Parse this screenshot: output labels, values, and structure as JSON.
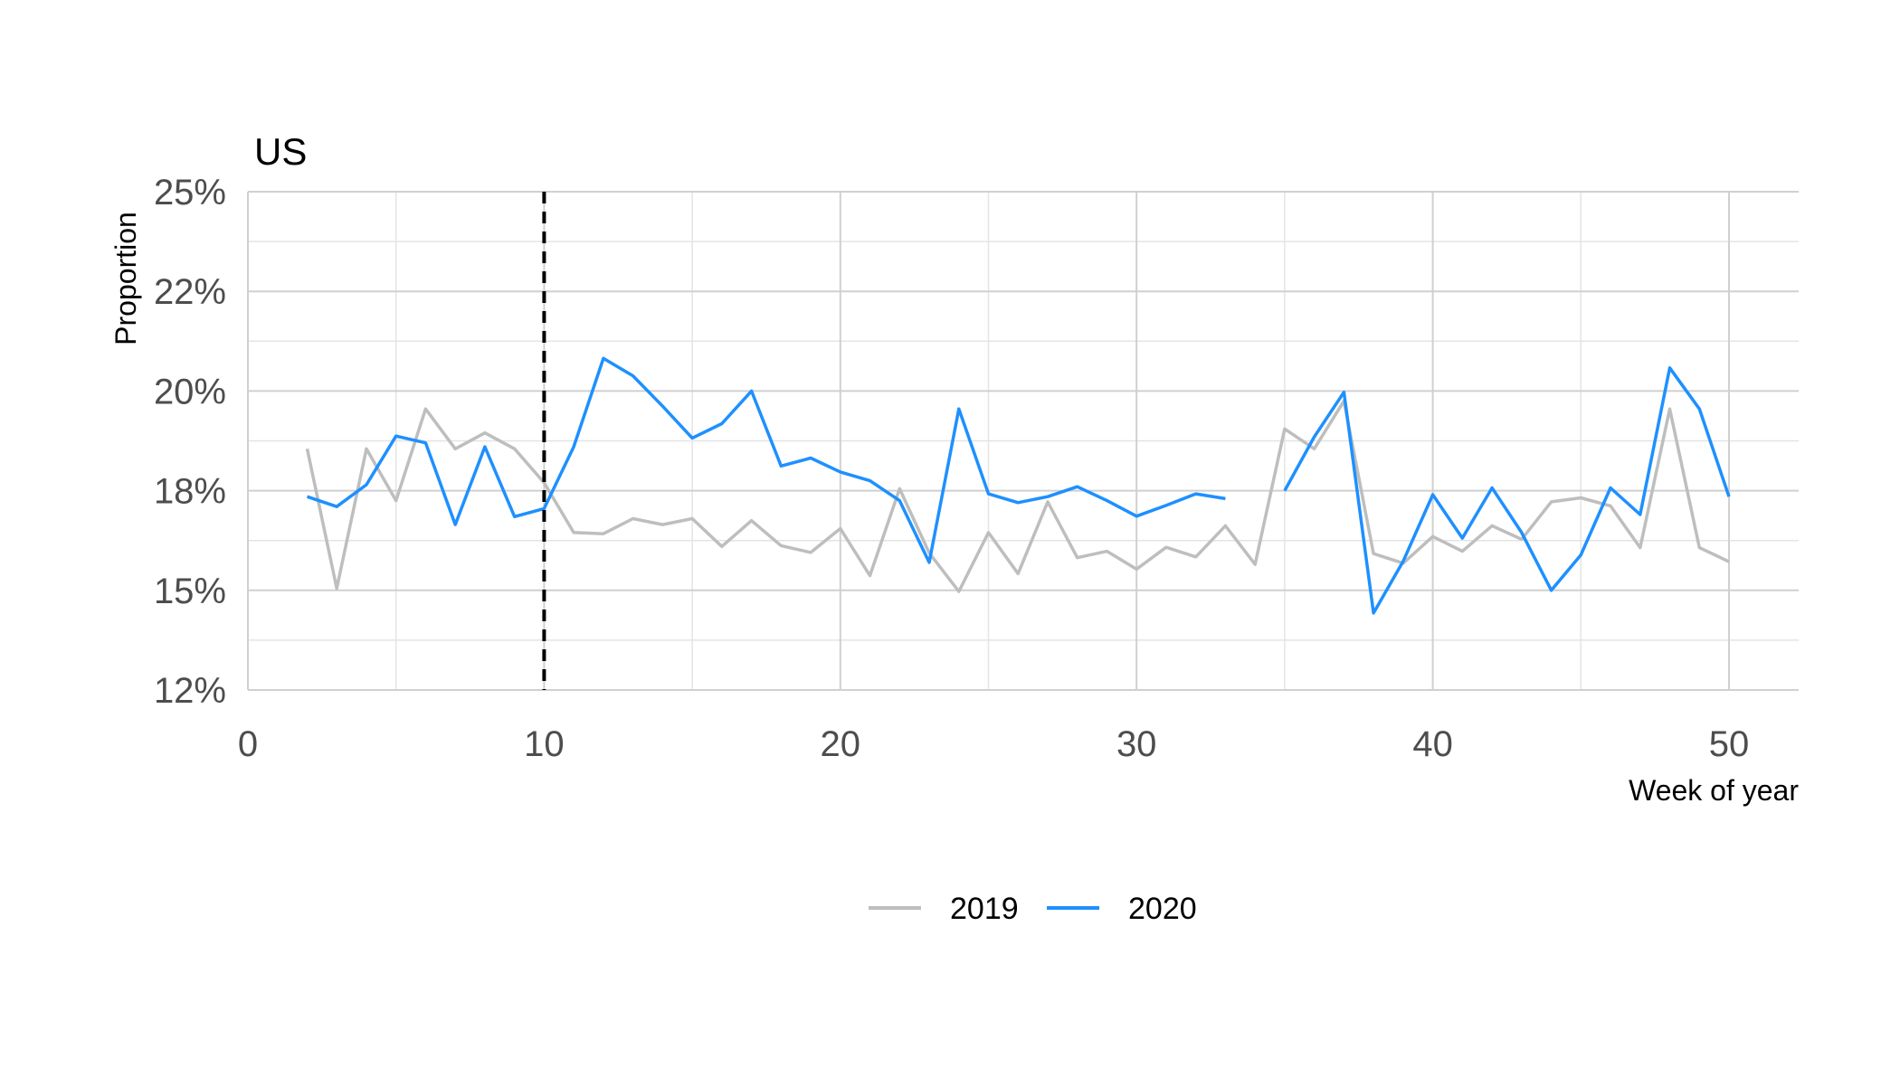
{
  "chart_data": {
    "type": "line",
    "title": "US",
    "xlabel": "Week of year",
    "ylabel": "Proportion",
    "xlim": [
      0,
      52.5
    ],
    "ylim": [
      0.125,
      0.25
    ],
    "x_ticks": [
      0,
      10,
      20,
      30,
      40,
      50
    ],
    "x_tick_labels": [
      "0",
      "10",
      "20",
      "30",
      "40",
      "50"
    ],
    "y_ticks": [
      0.125,
      0.15,
      0.175,
      0.2,
      0.225,
      0.25
    ],
    "y_tick_labels": [
      "12%",
      "15%",
      "18%",
      "20%",
      "22%",
      "25%"
    ],
    "grid": true,
    "legend_position": "bottom",
    "reference_line": {
      "x": 10,
      "style": "dashed",
      "color": "#000000"
    },
    "series": [
      {
        "name": "2019",
        "color": "#bebebe",
        "x": [
          2,
          3,
          4,
          5,
          6,
          7,
          8,
          9,
          10,
          11,
          12,
          13,
          14,
          15,
          16,
          17,
          18,
          19,
          20,
          21,
          22,
          23,
          24,
          25,
          26,
          27,
          28,
          29,
          30,
          31,
          32,
          33,
          34,
          35,
          36,
          37,
          38,
          39,
          40,
          41,
          42,
          43,
          44,
          45,
          46,
          47,
          48,
          49,
          50
        ],
        "values": [
          0.1855,
          0.1505,
          0.1855,
          0.1725,
          0.1955,
          0.1855,
          0.1895,
          0.1855,
          0.177,
          0.1645,
          0.1642,
          0.168,
          0.1665,
          0.168,
          0.161,
          0.1675,
          0.1612,
          0.1595,
          0.1655,
          0.1537,
          0.1755,
          0.1594,
          0.1497,
          0.1645,
          0.1542,
          0.1722,
          0.1582,
          0.1598,
          0.1553,
          0.1608,
          0.1584,
          0.1662,
          0.1565,
          0.1905,
          0.1855,
          0.1975,
          0.1592,
          0.1568,
          0.1635,
          0.1598,
          0.1662,
          0.1628,
          0.1722,
          0.1732,
          0.1712,
          0.1607,
          0.1955,
          0.1607,
          0.1572
        ]
      },
      {
        "name": "2020",
        "color": "#1e90ff",
        "x": [
          2,
          3,
          4,
          5,
          6,
          7,
          8,
          9,
          10,
          11,
          12,
          13,
          14,
          15,
          16,
          17,
          18,
          19,
          20,
          21,
          22,
          23,
          24,
          25,
          26,
          27,
          28,
          29,
          30,
          31,
          32,
          33,
          null,
          35,
          36,
          37,
          38,
          39,
          40,
          41,
          42,
          43,
          44,
          45,
          46,
          47,
          48,
          49,
          50
        ],
        "values": [
          0.1735,
          0.171,
          0.1765,
          0.1887,
          0.187,
          0.1665,
          0.186,
          0.1685,
          0.1705,
          0.186,
          0.2082,
          0.2038,
          0.1962,
          0.1882,
          0.1918,
          0.2,
          0.1812,
          0.1832,
          0.1797,
          0.1775,
          0.1725,
          0.157,
          0.1955,
          0.1742,
          0.172,
          0.1735,
          0.176,
          0.1725,
          0.1686,
          0.1713,
          0.1742,
          0.173,
          null,
          0.175,
          0.1885,
          0.1997,
          0.1443,
          0.1573,
          0.174,
          0.1631,
          0.1757,
          0.1645,
          0.15,
          0.1589,
          0.1757,
          0.169,
          0.2058,
          0.1955,
          0.1735
        ]
      }
    ]
  }
}
